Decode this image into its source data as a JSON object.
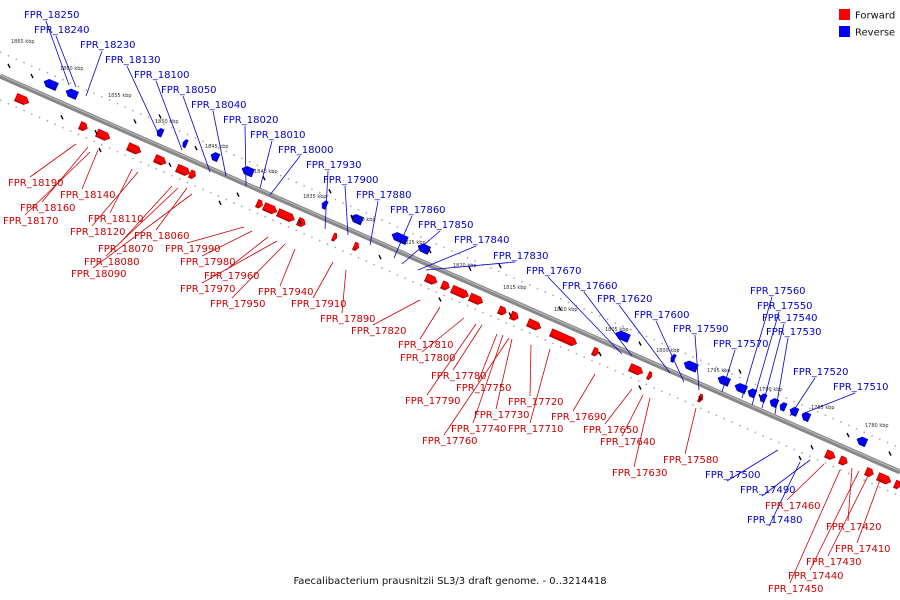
{
  "legend": {
    "forward": {
      "label": "Forward",
      "color": "#ff0000"
    },
    "reverse": {
      "label": "Reverse",
      "color": "#0000ff"
    }
  },
  "caption": "Faecalibacterium prausnitzii SL3/3 draft genome. - 0..3214418",
  "colors": {
    "forward_label": "#cc0000",
    "reverse_label": "#0000cc"
  },
  "ticks": [
    "1865 kbp",
    "1860 kbp",
    "1855 kbp",
    "1850 kbp",
    "1845 kbp",
    "1840 kbp",
    "1835 kbp",
    "1830 kbp",
    "1825 kbp",
    "1820 kbp",
    "1815 kbp",
    "1810 kbp",
    "1805 kbp",
    "1800 kbp",
    "1795 kbp",
    "1790 kbp",
    "1785 kbp",
    "1780 kbp"
  ],
  "reverse_genes": [
    "FPR_18250",
    "FPR_18240",
    "FPR_18230",
    "FPR_18130",
    "FPR_18100",
    "FPR_18050",
    "FPR_18040",
    "FPR_18020",
    "FPR_18010",
    "FPR_18000",
    "FPR_17930",
    "FPR_17900",
    "FPR_17880",
    "FPR_17860",
    "FPR_17850",
    "FPR_17840",
    "FPR_17830",
    "FPR_17670",
    "FPR_17660",
    "FPR_17620",
    "FPR_17600",
    "FPR_17590",
    "FPR_17570",
    "FPR_17560",
    "FPR_17550",
    "FPR_17540",
    "FPR_17530",
    "FPR_17520",
    "FPR_17510",
    "FPR_17500",
    "FPR_17490",
    "FPR_17480"
  ],
  "forward_genes": [
    "FPR_18190",
    "FPR_18140",
    "FPR_18160",
    "FPR_18170",
    "FPR_18110",
    "FPR_18120",
    "FPR_18060",
    "FPR_18070",
    "FPR_18080",
    "FPR_18090",
    "FPR_17990",
    "FPR_17980",
    "FPR_17960",
    "FPR_17970",
    "FPR_17950",
    "FPR_17940",
    "FPR_17910",
    "FPR_17890",
    "FPR_17820",
    "FPR_17810",
    "FPR_17800",
    "FPR_17780",
    "FPR_17790",
    "FPR_17750",
    "FPR_17730",
    "FPR_17740",
    "FPR_17720",
    "FPR_17710",
    "FPR_17760",
    "FPR_17690",
    "FPR_17650",
    "FPR_17640",
    "FPR_17630",
    "FPR_17580",
    "FPR_17460",
    "FPR_17420",
    "FPR_17410",
    "FPR_17430",
    "FPR_17440",
    "FPR_17450"
  ]
}
